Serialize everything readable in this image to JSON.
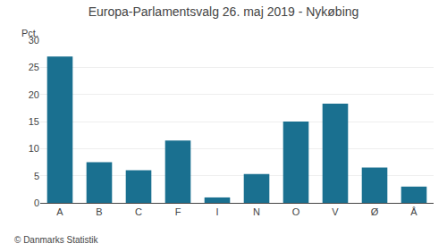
{
  "chart_data": {
    "type": "bar",
    "title": "Europa-Parlamentsvalg 26. maj 2019 - Nykøbing",
    "categories": [
      "A",
      "B",
      "C",
      "F",
      "I",
      "N",
      "O",
      "V",
      "Ø",
      "Å"
    ],
    "values": [
      27.0,
      7.5,
      6.0,
      11.5,
      1.0,
      5.3,
      15.0,
      18.3,
      6.5,
      3.0
    ],
    "color": "#1a7090",
    "ylabel": "Pct.",
    "ylim": [
      0,
      30
    ],
    "yticks": [
      0,
      5,
      10,
      15,
      20,
      25,
      30
    ],
    "grid": true,
    "annotations": [
      "© Danmarks Statistik"
    ]
  }
}
